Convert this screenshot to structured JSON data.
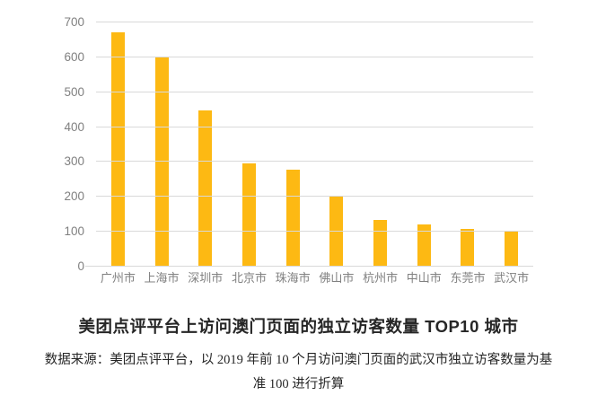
{
  "chart": {
    "title": "美团点评平台上访问澳门页面的独立访客数量 TOP10 城市",
    "source_line1": "数据来源：美团点评平台，以 2019 年前 10 个月访问澳门页面的武汉市独立访客数量为基",
    "source_line2": "准 100 进行折算"
  },
  "chart_data": {
    "type": "bar",
    "categories": [
      "广州市",
      "上海市",
      "深圳市",
      "北京市",
      "珠海市",
      "佛山市",
      "杭州市",
      "中山市",
      "东莞市",
      "武汉市"
    ],
    "values": [
      672,
      600,
      448,
      297,
      277,
      204,
      133,
      121,
      108,
      100
    ],
    "title": "美团点评平台上访问澳门页面的独立访客数量 TOP10 城市",
    "xlabel": "",
    "ylabel": "",
    "ylim": [
      0,
      700
    ],
    "yticks": [
      0,
      100,
      200,
      300,
      400,
      500,
      600,
      700
    ],
    "grid": true,
    "legend": false,
    "annotation": "数据来源：美团点评平台，以 2019 年前 10 个月访问澳门页面的武汉市独立访客数量为基准 100 进行折算",
    "colors": {
      "bar": "#FDB913",
      "gridline": "#D9D9D9",
      "axis_label": "#808080",
      "title_text": "#262626",
      "source_text": "#262626",
      "background": "#FFFFFF"
    }
  }
}
